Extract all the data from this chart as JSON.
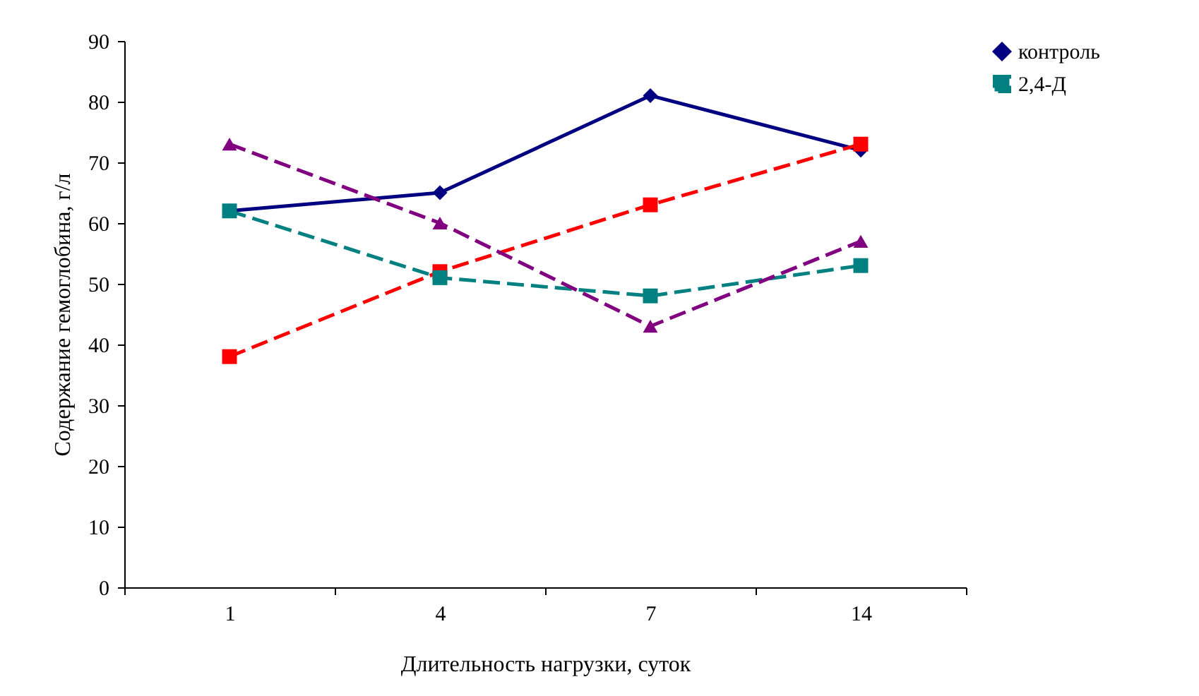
{
  "chart_data": {
    "type": "line",
    "xlabel": "Длительность нагрузки, суток",
    "ylabel": "Содержание гемоглобина, г/л",
    "categories": [
      "1",
      "4",
      "7",
      "14"
    ],
    "ylim": [
      0,
      90
    ],
    "yticks": [
      0,
      10,
      20,
      30,
      40,
      50,
      60,
      70,
      80,
      90
    ],
    "grid": false,
    "legend": "right",
    "series": [
      {
        "name": "контроль",
        "color": "#000080",
        "values": [
          62,
          65,
          81,
          72
        ],
        "marker": "diamond",
        "line_style": "solid"
      },
      {
        "color": "#ff0000",
        "values": [
          38,
          52,
          63,
          73
        ],
        "marker": "square",
        "line_style": "dashed"
      },
      {
        "name": "2,4-Д",
        "color": "#008080",
        "values": [
          62,
          51,
          48,
          53
        ],
        "marker": "square",
        "line_style": "dashed"
      },
      {
        "color": "#800080",
        "values": [
          73,
          60,
          43,
          57
        ],
        "marker": "triangle",
        "line_style": "dashed"
      }
    ]
  }
}
